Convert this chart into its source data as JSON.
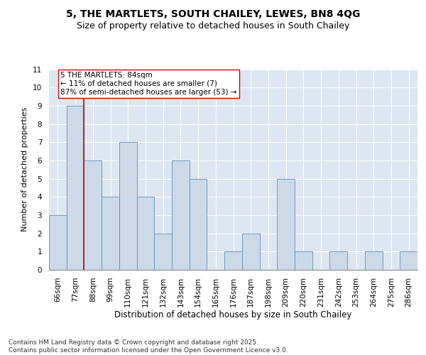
{
  "title1": "5, THE MARTLETS, SOUTH CHAILEY, LEWES, BN8 4QG",
  "title2": "Size of property relative to detached houses in South Chailey",
  "xlabel": "Distribution of detached houses by size in South Chailey",
  "ylabel": "Number of detached properties",
  "categories": [
    "66sqm",
    "77sqm",
    "88sqm",
    "99sqm",
    "110sqm",
    "121sqm",
    "132sqm",
    "143sqm",
    "154sqm",
    "165sqm",
    "176sqm",
    "187sqm",
    "198sqm",
    "209sqm",
    "220sqm",
    "231sqm",
    "242sqm",
    "253sqm",
    "264sqm",
    "275sqm",
    "286sqm"
  ],
  "values": [
    3,
    9,
    6,
    4,
    7,
    4,
    2,
    6,
    5,
    0,
    1,
    2,
    0,
    5,
    1,
    0,
    1,
    0,
    1,
    0,
    1
  ],
  "bar_color": "#ccd9e8",
  "bar_edge_color": "#6090b8",
  "vline_x": 1.5,
  "vline_color": "#cc0000",
  "annotation_line1": "5 THE MARTLETS: 84sqm",
  "annotation_line2": "← 11% of detached houses are smaller (7)",
  "annotation_line3": "87% of semi-detached houses are larger (53) →",
  "annotation_box_color": "#ffffff",
  "annotation_box_edge": "#cc0000",
  "ylim": [
    0,
    11
  ],
  "yticks": [
    0,
    1,
    2,
    3,
    4,
    5,
    6,
    7,
    8,
    9,
    10,
    11
  ],
  "bg_color": "#dde6f0",
  "footer": "Contains HM Land Registry data © Crown copyright and database right 2025.\nContains public sector information licensed under the Open Government Licence v3.0.",
  "title1_fontsize": 10,
  "title2_fontsize": 9,
  "xlabel_fontsize": 8.5,
  "ylabel_fontsize": 8,
  "tick_fontsize": 7.5,
  "annotation_fontsize": 7.5,
  "footer_fontsize": 6.5
}
